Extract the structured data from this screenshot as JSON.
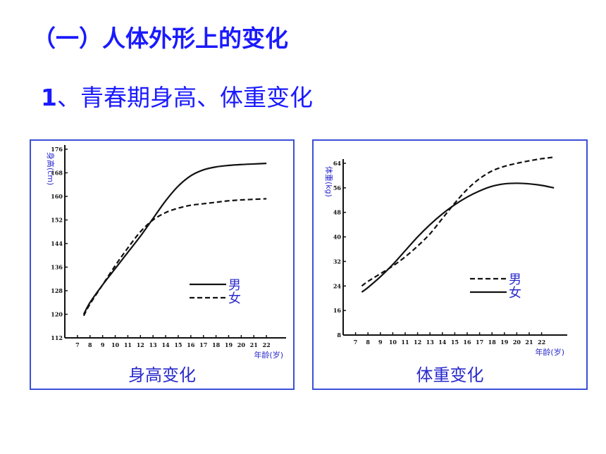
{
  "slide": {
    "title": "（一）人体外形上的变化",
    "subtitle_num": "1",
    "subtitle_text": "、青春期身高、体重变化"
  },
  "chart_data": [
    {
      "type": "line",
      "caption": "身高变化",
      "ylabel": "身高(cm)",
      "xlabel": "年龄(岁)",
      "x": [
        7,
        8,
        9,
        10,
        11,
        12,
        13,
        14,
        15,
        16,
        17,
        18,
        19,
        20,
        21,
        22
      ],
      "ylim": [
        112,
        176
      ],
      "yticks": [
        112,
        120,
        128,
        136,
        144,
        152,
        160,
        168,
        176
      ],
      "series": [
        {
          "name": "男",
          "style": "solid",
          "points": [
            [
              7.5,
              120
            ],
            [
              8,
              124
            ],
            [
              9,
              130
            ],
            [
              10,
              135.5
            ],
            [
              11,
              141
            ],
            [
              12,
              146.5
            ],
            [
              13,
              152.5
            ],
            [
              14,
              158.5
            ],
            [
              15,
              163.5
            ],
            [
              16,
              167
            ],
            [
              17,
              169
            ],
            [
              18,
              170
            ],
            [
              19,
              170.5
            ],
            [
              20,
              170.8
            ],
            [
              21,
              171
            ],
            [
              22,
              171.2
            ]
          ]
        },
        {
          "name": "女",
          "style": "dashed",
          "points": [
            [
              7.5,
              119.5
            ],
            [
              8,
              123.5
            ],
            [
              9,
              130
            ],
            [
              10,
              136.5
            ],
            [
              11,
              142.5
            ],
            [
              12,
              148
            ],
            [
              13,
              152
            ],
            [
              14,
              154.5
            ],
            [
              15,
              156
            ],
            [
              16,
              157
            ],
            [
              17,
              157.5
            ],
            [
              18,
              158
            ],
            [
              19,
              158.5
            ],
            [
              20,
              158.8
            ],
            [
              21,
              159
            ],
            [
              22,
              159.2
            ]
          ]
        }
      ],
      "legend": [
        "男",
        "女"
      ]
    },
    {
      "type": "line",
      "caption": "体重变化",
      "ylabel": "体重(kg)",
      "xlabel": "年龄(岁)",
      "x": [
        7,
        8,
        9,
        10,
        11,
        12,
        13,
        14,
        15,
        16,
        17,
        18,
        19,
        20,
        21,
        22
      ],
      "ylim": [
        8,
        64
      ],
      "yticks": [
        8,
        16,
        24,
        32,
        40,
        48,
        56,
        64
      ],
      "series": [
        {
          "name": "男",
          "style": "dashed",
          "points": [
            [
              7.5,
              24
            ],
            [
              8,
              25.5
            ],
            [
              9,
              28
            ],
            [
              10,
              30.5
            ],
            [
              11,
              33.5
            ],
            [
              12,
              37
            ],
            [
              13,
              41
            ],
            [
              14,
              46
            ],
            [
              15,
              51
            ],
            [
              16,
              55.5
            ],
            [
              17,
              59
            ],
            [
              18,
              61.5
            ],
            [
              19,
              63
            ],
            [
              20,
              64
            ],
            [
              21,
              64.8
            ],
            [
              22,
              65.5
            ],
            [
              23,
              66
            ]
          ]
        },
        {
          "name": "女",
          "style": "solid",
          "points": [
            [
              7.5,
              22
            ],
            [
              8,
              23.5
            ],
            [
              9,
              27
            ],
            [
              10,
              31
            ],
            [
              11,
              35.5
            ],
            [
              12,
              40
            ],
            [
              13,
              44
            ],
            [
              14,
              47.5
            ],
            [
              15,
              50.5
            ],
            [
              16,
              53
            ],
            [
              17,
              55
            ],
            [
              18,
              56.5
            ],
            [
              19,
              57.3
            ],
            [
              20,
              57.5
            ],
            [
              21,
              57.3
            ],
            [
              22,
              56.8
            ],
            [
              23,
              56
            ]
          ]
        }
      ],
      "legend": [
        "男",
        "女"
      ]
    }
  ]
}
